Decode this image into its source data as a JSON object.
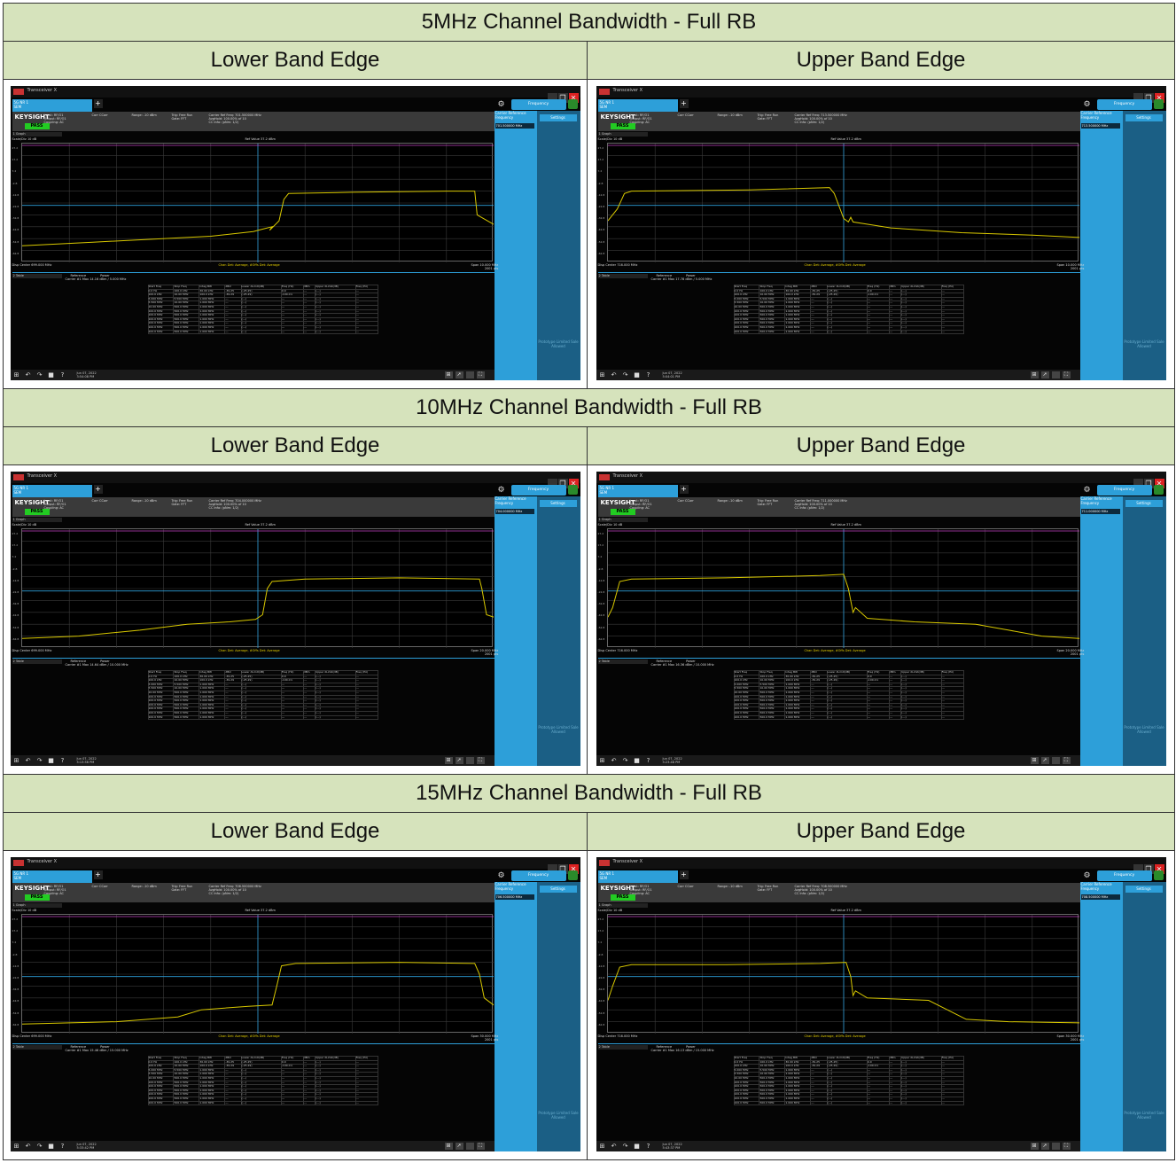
{
  "sections": [
    {
      "header": "5MHz Channel Bandwidth - Full RB",
      "lower": {
        "label": "Lower Band Edge",
        "center_freq": "Carrier Ref Freq: 701.500000 MHz",
        "disp_center": "Disp Center 699.000 MHz",
        "span": "Span 10.000 MHz",
        "points": "2001 pts",
        "ref_value": "Ref Value 37.2 dBm",
        "ref_power": "Carrier #1 Max    14.16 dBm / 5.000 MHz",
        "center_ref": "701.500000 MHz",
        "date": "Jun 07, 2022",
        "time": "3:54:08 PM",
        "trace": "lower_narrow"
      },
      "upper": {
        "label": "Upper Band Edge",
        "center_freq": "Carrier Ref Freq: 713.500000 MHz",
        "disp_center": "Disp Center 716.000 MHz",
        "span": "Span 10.000 MHz",
        "points": "2001 pts",
        "ref_value": "Ref Value 37.2 dBm",
        "ref_power": "Carrier #1 Max    17.78 dBm / 5.000 MHz",
        "center_ref": "713.500000 MHz",
        "date": "Jun 07, 2022",
        "time": "5:04:01 PM",
        "trace": "upper_narrow"
      }
    },
    {
      "header": "10MHz Channel Bandwidth - Full RB",
      "lower": {
        "label": "Lower Band Edge",
        "center_freq": "Carrier Ref Freq: 704.000000 MHz",
        "disp_center": "Disp Center 699.000 MHz",
        "span": "Span 20.000 MHz",
        "points": "2001 pts",
        "ref_value": "Ref Value 37.2 dBm",
        "ref_power": "Carrier #1 Max    14.64 dBm / 10.000 MHz",
        "center_ref": "704.000000 MHz",
        "date": "Jun 07, 2022",
        "time": "5:13:56 PM",
        "trace": "lower_wide"
      },
      "upper": {
        "label": "Upper Band Edge",
        "center_freq": "Carrier Ref Freq: 711.000000 MHz",
        "disp_center": "Disp Center 716.000 MHz",
        "span": "Span 20.000 MHz",
        "points": "2001 pts",
        "ref_value": "Ref Value 37.2 dBm",
        "ref_power": "Carrier #1 Max    16.36 dBm / 10.000 MHz",
        "center_ref": "711.000000 MHz",
        "date": "Jun 07, 2022",
        "time": "5:23:48 PM",
        "trace": "upper_wide"
      }
    },
    {
      "header": "15MHz Channel Bandwidth - Full RB",
      "lower": {
        "label": "Lower Band Edge",
        "center_freq": "Carrier Ref Freq: 706.500000 MHz",
        "disp_center": "Disp Center 699.000 MHz",
        "span": "Span 30.000 MHz",
        "points": "2001 pts",
        "ref_value": "Ref Value 37.2 dBm",
        "ref_power": "Carrier #1 Max    15.46 dBm / 15.000 MHz",
        "center_ref": "706.500000 MHz",
        "date": "Jun 07, 2022",
        "time": "5:33:42 PM",
        "trace": "lower_wider"
      },
      "upper": {
        "label": "Upper Band Edge",
        "center_freq": "Carrier Ref Freq: 708.500000 MHz",
        "disp_center": "Disp Center 716.000 MHz",
        "span": "Span 30.000 MHz",
        "points": "2001 pts",
        "ref_value": "Ref Value 37.2 dBm",
        "ref_power": "Carrier #1 Max    16.13 dBm / 15.000 MHz",
        "center_ref": "708.500000 MHz",
        "date": "Jun 07, 2022",
        "time": "5:43:37 PM",
        "trace": "upper_wider"
      }
    }
  ],
  "instrument": {
    "window_title": "Transceiver X",
    "mode_tab": "5G NR 1",
    "mode_tab_sub": "SEM",
    "brand": "KEYSIGHT",
    "pass": "PASS",
    "input": "Input: RF/O1",
    "output": "Output: RF/O1",
    "coupling": "Coupling: AC",
    "corr": "Corr CCorr",
    "range": "Range: -10 dBm",
    "trig": "Trig: Free Run",
    "gate": "Gate: FFT",
    "avg": "AvgHold: 100.00% of 10",
    "ccinfo": "CC Info: (pNm: 1/2)",
    "graph_label": "1 Graph",
    "scale": "Scale/Div 10 dB",
    "log": "Log",
    "detectors": "Chan Det: Average, #Offs Det: Average",
    "table_label": "2 Table",
    "ref_header": "Reference",
    "power_header": "Power",
    "freq_tab": "Frequency",
    "center_ref_label": "Carrier Reference Frequency",
    "settings": "Settings",
    "proto": "Prototype Limited Sale Allowed",
    "y_ticks": [
      "27.2",
      "17.2",
      "7.2",
      "-2.8",
      "-12.8",
      "-22.8",
      "-32.8",
      "-42.8",
      "-52.8",
      "-62.8"
    ]
  },
  "meas_table": {
    "headers": [
      "Start Freq",
      "Stop Freq",
      "Integ BW",
      "dBm",
      "Lower dLimit(dB)",
      "Freq (Hz)",
      "dBm",
      "Upper dLimit(dB)",
      "Freq (Hz)"
    ],
    "rows": [
      [
        "0.0 Hz",
        "100.0 kHz",
        "30.00 kHz",
        "-39.25",
        "(-25.25)",
        "0.0",
        "---",
        "(---)",
        "---"
      ],
      [
        "100.0 kHz",
        "10.00 MHz",
        "100.0 kHz",
        "-39.29",
        "(-25.29)",
        "-100.0 k",
        "---",
        "(---)",
        "---"
      ],
      [
        "5.000 MHz",
        "5.500 MHz",
        "1.000 MHz",
        "---",
        "(---)",
        "---",
        "---",
        "(---)",
        "---"
      ],
      [
        "5.500 MHz",
        "10.00 MHz",
        "1.000 MHz",
        "---",
        "(---)",
        "---",
        "---",
        "(---)",
        "---"
      ],
      [
        "10.00 MHz",
        "500.0 MHz",
        "1.000 MHz",
        "---",
        "(---)",
        "---",
        "---",
        "(---)",
        "---"
      ],
      [
        "100.0 MHz",
        "500.0 MHz",
        "1.000 MHz",
        "---",
        "(---)",
        "---",
        "---",
        "(---)",
        "---"
      ],
      [
        "100.0 MHz",
        "500.0 MHz",
        "1.000 MHz",
        "---",
        "(---)",
        "---",
        "---",
        "(---)",
        "---"
      ],
      [
        "100.0 MHz",
        "500.0 MHz",
        "1.000 MHz",
        "---",
        "(---)",
        "---",
        "---",
        "(---)",
        "---"
      ],
      [
        "100.0 MHz",
        "500.0 MHz",
        "1.000 MHz",
        "---",
        "(---)",
        "---",
        "---",
        "(---)",
        "---"
      ],
      [
        "100.0 MHz",
        "500.0 MHz",
        "1.000 MHz",
        "---",
        "(---)",
        "---",
        "---",
        "(---)",
        "---"
      ],
      [
        "100.0 MHz",
        "500.0 MHz",
        "1.000 MHz",
        "---",
        "(---)",
        "---",
        "---",
        "(---)",
        "---"
      ]
    ]
  }
}
